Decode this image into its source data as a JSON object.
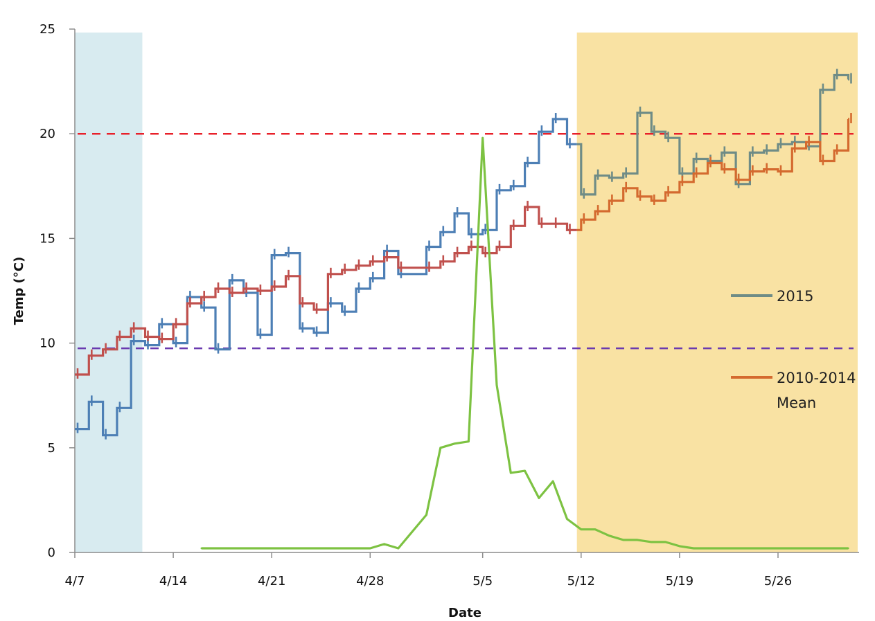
{
  "chart_data": {
    "type": "line",
    "xlabel": "Date",
    "ylabel": "Temp (°C)",
    "ylim": [
      0,
      25
    ],
    "x_tick_labels": [
      "4/7",
      "4/14",
      "4/21",
      "4/28",
      "5/5",
      "5/12",
      "5/19",
      "5/26"
    ],
    "y_tick_labels": [
      "0",
      "5",
      "10",
      "15",
      "20",
      "25"
    ],
    "grid": false,
    "legend_position": "right",
    "shaded_regions": [
      {
        "from": "4/7",
        "to": "4/11.8",
        "color": "#d8ebf0"
      },
      {
        "from": "5/11.7",
        "to": "6/1",
        "color": "#f9e2a3"
      }
    ],
    "reference_lines": [
      {
        "y": 20,
        "color": "#e8202a",
        "style": "dashed"
      },
      {
        "y": 9.75,
        "color": "#6a3ab0",
        "style": "dashed"
      }
    ],
    "series": [
      {
        "name": "2015",
        "color": "#4d7fb5",
        "color_late": "#6f8c86",
        "x": [
          "4/7",
          "4/8",
          "4/9",
          "4/10",
          "4/11",
          "4/12",
          "4/13",
          "4/14",
          "4/15",
          "4/16",
          "4/17",
          "4/18",
          "4/19",
          "4/20",
          "4/21",
          "4/22",
          "4/23",
          "4/24",
          "4/25",
          "4/26",
          "4/27",
          "4/28",
          "4/29",
          "4/30",
          "5/1",
          "5/2",
          "5/3",
          "5/4",
          "5/5",
          "5/6",
          "5/7",
          "5/8",
          "5/9",
          "5/10",
          "5/11",
          "5/12",
          "5/13",
          "5/14",
          "5/15",
          "5/16",
          "5/17",
          "5/18",
          "5/19",
          "5/20",
          "5/21",
          "5/22",
          "5/23",
          "5/24",
          "5/25",
          "5/26",
          "5/27",
          "5/28",
          "5/29",
          "5/30",
          "5/31"
        ],
        "y": [
          5.9,
          7.2,
          5.6,
          6.9,
          10.1,
          9.9,
          10.9,
          10.0,
          12.2,
          11.7,
          9.7,
          13.0,
          12.4,
          10.4,
          14.2,
          14.3,
          10.7,
          10.5,
          11.9,
          11.5,
          12.6,
          13.1,
          14.4,
          13.3,
          14.6,
          15.3,
          16.2,
          15.2,
          15.4,
          17.3,
          17.5,
          18.6,
          20.1,
          20.7,
          19.5,
          17.1,
          18.0,
          17.9,
          18.1,
          21.0,
          20.1,
          19.8,
          18.1,
          18.8,
          18.7,
          19.1,
          17.6,
          19.1,
          19.2,
          19.5,
          19.6,
          19.4,
          22.1,
          22.8,
          22.6
        ]
      },
      {
        "name": "2010-2014 Mean",
        "color": "#c0504d",
        "color_late": "#d46a2f",
        "x": [
          "4/7",
          "4/8",
          "4/9",
          "4/10",
          "4/11",
          "4/12",
          "4/13",
          "4/14",
          "4/15",
          "4/16",
          "4/17",
          "4/18",
          "4/19",
          "4/20",
          "4/21",
          "4/22",
          "4/23",
          "4/24",
          "4/25",
          "4/26",
          "4/27",
          "4/28",
          "4/29",
          "4/30",
          "5/1",
          "5/2",
          "5/3",
          "5/4",
          "5/5",
          "5/6",
          "5/7",
          "5/8",
          "5/9",
          "5/10",
          "5/11",
          "5/12",
          "5/13",
          "5/14",
          "5/15",
          "5/16",
          "5/17",
          "5/18",
          "5/19",
          "5/20",
          "5/21",
          "5/22",
          "5/23",
          "5/24",
          "5/25",
          "5/26",
          "5/27",
          "5/28",
          "5/29",
          "5/30",
          "5/31"
        ],
        "y": [
          8.5,
          9.4,
          9.7,
          10.3,
          10.7,
          10.3,
          10.2,
          10.9,
          11.9,
          12.2,
          12.6,
          12.4,
          12.6,
          12.5,
          12.7,
          13.2,
          11.9,
          11.6,
          13.3,
          13.5,
          13.7,
          13.9,
          14.1,
          13.6,
          13.6,
          13.9,
          14.3,
          14.6,
          14.3,
          14.6,
          15.6,
          16.5,
          15.7,
          15.7,
          15.4,
          15.9,
          16.3,
          16.8,
          17.4,
          17.0,
          16.8,
          17.2,
          17.7,
          18.1,
          18.6,
          18.3,
          17.8,
          18.2,
          18.3,
          18.2,
          19.3,
          19.6,
          18.7,
          19.2,
          20.7
        ]
      },
      {
        "name": "",
        "color": "#7dc242",
        "x": [
          "4/16",
          "4/28",
          "4/29",
          "4/30",
          "5/1",
          "5/2",
          "5/3",
          "5/4",
          "5/5",
          "5/6",
          "5/7",
          "5/8",
          "5/9",
          "5/10",
          "5/11",
          "5/12",
          "5/13",
          "5/14",
          "5/15",
          "5/16",
          "5/17",
          "5/18",
          "5/19",
          "5/20",
          "5/21",
          "5/22",
          "5/23",
          "5/24",
          "5/25",
          "5/26",
          "5/27",
          "5/28",
          "5/29",
          "5/30",
          "5/31"
        ],
        "y": [
          0.2,
          0.2,
          0.4,
          0.2,
          1.8,
          5.0,
          5.2,
          5.3,
          19.8,
          8.0,
          3.8,
          3.9,
          2.6,
          3.4,
          1.6,
          1.1,
          1.1,
          0.8,
          0.6,
          0.6,
          0.5,
          0.5,
          0.3,
          0.2,
          0.2,
          0.2,
          0.2,
          0.2,
          0.2,
          0.2,
          0.2,
          0.2,
          0.2,
          0.2,
          0.2
        ]
      }
    ]
  },
  "legend": {
    "entries": [
      {
        "label": "2015",
        "color": "#6f8c86"
      },
      {
        "label_line1": "2010-2014",
        "label_line2": "Mean",
        "color": "#d46a2f"
      }
    ]
  }
}
